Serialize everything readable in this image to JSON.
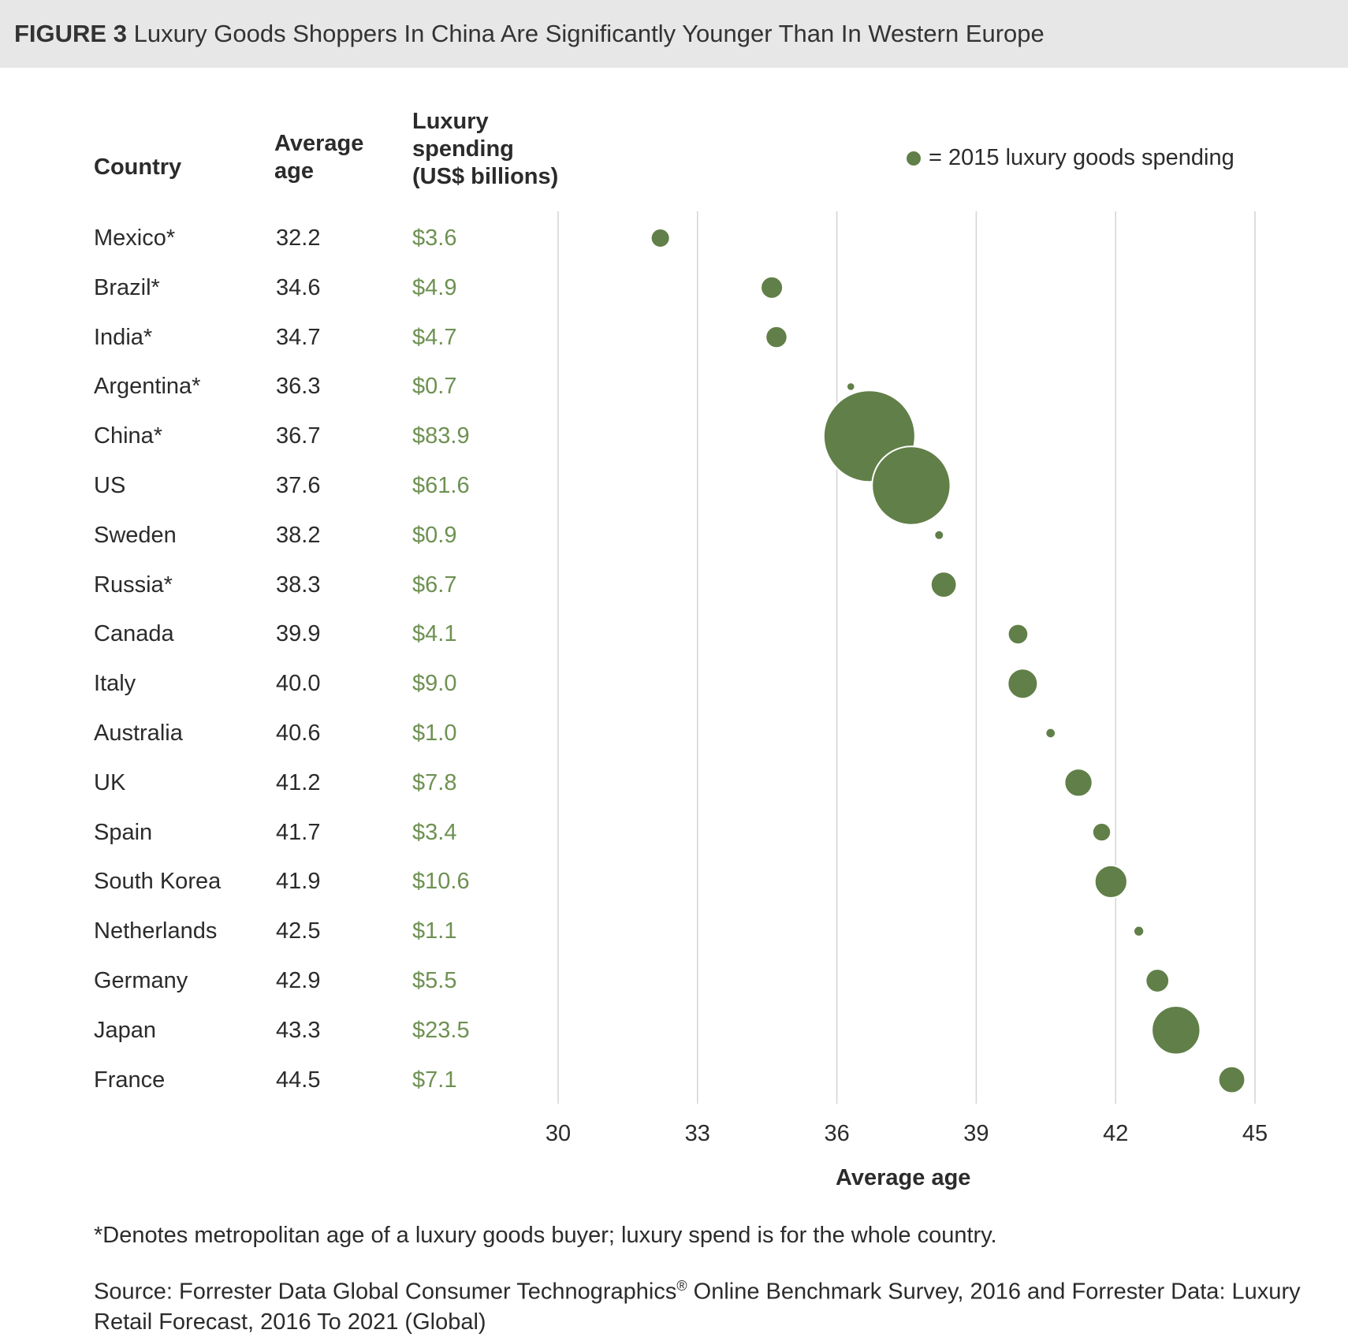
{
  "figure": {
    "label": "FIGURE 3",
    "title": "Luxury Goods Shoppers In China Are Significantly Younger Than In Western Europe"
  },
  "table_headers": {
    "country": "Country",
    "age": "Average\nage",
    "spend": "Luxury\nspending\n(US$ billions)"
  },
  "legend": {
    "text": "= 2015 luxury goods spending",
    "color": "#617f48"
  },
  "footnote": "*Denotes metropolitan age of a luxury goods buyer; luxury spend is for the whole country.",
  "source": {
    "prefix": "Source: Forrester Data Global Consumer Technographics",
    "mark": "®",
    "suffix": " Online Benchmark Survey, 2016 and Forrester Data: Luxury Retail Forecast, 2016 To 2021 (Global)"
  },
  "chart_data": {
    "type": "scatter",
    "title": "Luxury Goods Shoppers In China Are Significantly Younger Than In Western Europe",
    "xlabel": "Average age",
    "ylabel": "",
    "xlim": [
      30,
      45
    ],
    "xticks": [
      30,
      33,
      36,
      39,
      42,
      45
    ],
    "grid": true,
    "legend_position": "top-right",
    "bubble_color": "#617f48",
    "size_variable": "2015 luxury goods spending (US$ billions)",
    "rows": [
      {
        "country": "Mexico*",
        "age": 32.2,
        "spend": 3.6,
        "spend_label": "$3.6"
      },
      {
        "country": "Brazil*",
        "age": 34.6,
        "spend": 4.9,
        "spend_label": "$4.9"
      },
      {
        "country": "India*",
        "age": 34.7,
        "spend": 4.7,
        "spend_label": "$4.7"
      },
      {
        "country": "Argentina*",
        "age": 36.3,
        "spend": 0.7,
        "spend_label": "$0.7"
      },
      {
        "country": "China*",
        "age": 36.7,
        "spend": 83.9,
        "spend_label": "$83.9"
      },
      {
        "country": "US",
        "age": 37.6,
        "spend": 61.6,
        "spend_label": "$61.6"
      },
      {
        "country": "Sweden",
        "age": 38.2,
        "spend": 0.9,
        "spend_label": "$0.9"
      },
      {
        "country": "Russia*",
        "age": 38.3,
        "spend": 6.7,
        "spend_label": "$6.7"
      },
      {
        "country": "Canada",
        "age": 39.9,
        "spend": 4.1,
        "spend_label": "$4.1"
      },
      {
        "country": "Italy",
        "age": 40.0,
        "spend": 9.0,
        "spend_label": "$9.0"
      },
      {
        "country": "Australia",
        "age": 40.6,
        "spend": 1.0,
        "spend_label": "$1.0"
      },
      {
        "country": "UK",
        "age": 41.2,
        "spend": 7.8,
        "spend_label": "$7.8"
      },
      {
        "country": "Spain",
        "age": 41.7,
        "spend": 3.4,
        "spend_label": "$3.4"
      },
      {
        "country": "South Korea",
        "age": 41.9,
        "spend": 10.6,
        "spend_label": "$10.6"
      },
      {
        "country": "Netherlands",
        "age": 42.5,
        "spend": 1.1,
        "spend_label": "$1.1"
      },
      {
        "country": "Germany",
        "age": 42.9,
        "spend": 5.5,
        "spend_label": "$5.5"
      },
      {
        "country": "Japan",
        "age": 43.3,
        "spend": 23.5,
        "spend_label": "$23.5"
      },
      {
        "country": "France",
        "age": 44.5,
        "spend": 7.1,
        "spend_label": "$7.1"
      }
    ]
  }
}
